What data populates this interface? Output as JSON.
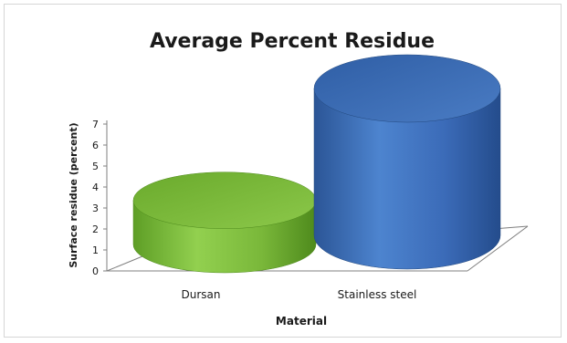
{
  "chart_data": {
    "type": "bar",
    "style": "3d-cylinder",
    "title": "Average Percent Residue",
    "xlabel": "Material",
    "ylabel": "Surface residue (percent)",
    "categories": [
      "Dursan",
      "Stainless steel"
    ],
    "values": [
      2.1,
      7.0
    ],
    "ylim": [
      0,
      7
    ],
    "yticks": [
      0,
      1,
      2,
      3,
      4,
      5,
      6,
      7
    ],
    "legend": "none",
    "grid": false,
    "colors": {
      "Dursan": "#7ac143",
      "Stainless steel": "#3a6ab8"
    }
  }
}
